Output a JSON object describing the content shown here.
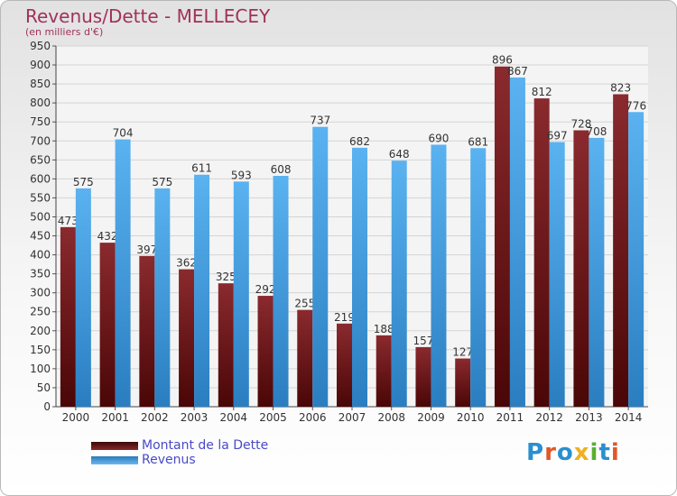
{
  "header": {
    "title": "Revenus/Dette - MELLECEY",
    "subtitle": "(en milliers d'€)"
  },
  "logo": {
    "text": "Proxiti",
    "colors": [
      "#2a8fd0",
      "#e0572a",
      "#2a8fd0",
      "#f0b020",
      "#5ab030",
      "#2a8fd0",
      "#e0572a"
    ]
  },
  "colors": {
    "debt": "#7a1a1e",
    "revenue": "#4aa3e6",
    "title": "#a0325a",
    "legend_text": "#4a4ac8"
  },
  "chart_data": {
    "type": "bar",
    "title": "Revenus/Dette - MELLECEY",
    "ylabel": "(en milliers d'€)",
    "categories": [
      "2000",
      "2001",
      "2002",
      "2003",
      "2004",
      "2005",
      "2006",
      "2007",
      "2008",
      "2009",
      "2010",
      "2011",
      "2012",
      "2013",
      "2014"
    ],
    "series": [
      {
        "name": "Montant de la Dette",
        "values": [
          473,
          432,
          397,
          362,
          325,
          292,
          255,
          219,
          188,
          157,
          127,
          896,
          812,
          728,
          823
        ]
      },
      {
        "name": "Revenus",
        "values": [
          575,
          704,
          575,
          611,
          593,
          608,
          737,
          682,
          648,
          690,
          681,
          867,
          697,
          708,
          776
        ]
      }
    ],
    "ylim": [
      0,
      950
    ],
    "yticks": [
      0,
      50,
      100,
      150,
      200,
      250,
      300,
      350,
      400,
      450,
      500,
      550,
      600,
      650,
      700,
      750,
      800,
      850,
      900,
      950
    ],
    "grid": true,
    "legend_position": "bottom-left"
  }
}
